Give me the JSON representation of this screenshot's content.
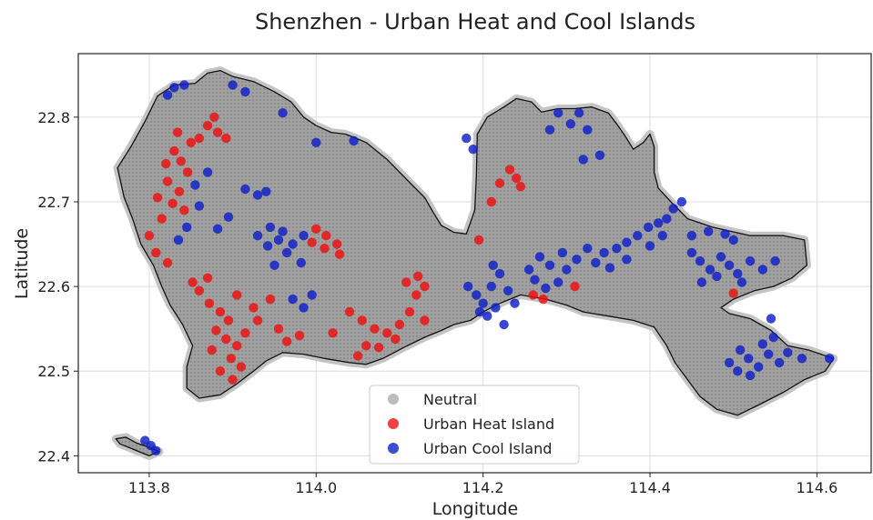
{
  "chart_data": {
    "type": "scatter",
    "title": "Shenzhen - Urban Heat and Cool Islands",
    "xlabel": "Longitude",
    "ylabel": "Latitude",
    "xlim": [
      113.715,
      114.665
    ],
    "ylim": [
      22.38,
      22.875
    ],
    "xticks": [
      113.8,
      114.0,
      114.2,
      114.4,
      114.6
    ],
    "xtick_labels": [
      "113.8",
      "114.0",
      "114.2",
      "114.4",
      "114.6"
    ],
    "yticks": [
      22.4,
      22.5,
      22.6,
      22.7,
      22.8
    ],
    "ytick_labels": [
      "22.4",
      "22.5",
      "22.6",
      "22.7",
      "22.8"
    ],
    "grid": true,
    "legend_position": "bottom-center",
    "boundary": [
      [
        113.762,
        22.74
      ],
      [
        113.778,
        22.765
      ],
      [
        113.795,
        22.795
      ],
      [
        113.81,
        22.825
      ],
      [
        113.83,
        22.838
      ],
      [
        113.855,
        22.84
      ],
      [
        113.87,
        22.852
      ],
      [
        113.885,
        22.855
      ],
      [
        113.9,
        22.848
      ],
      [
        113.925,
        22.842
      ],
      [
        113.95,
        22.83
      ],
      [
        113.97,
        22.818
      ],
      [
        113.985,
        22.8
      ],
      [
        114.0,
        22.79
      ],
      [
        114.018,
        22.782
      ],
      [
        114.035,
        22.78
      ],
      [
        114.048,
        22.775
      ],
      [
        114.06,
        22.77
      ],
      [
        114.085,
        22.75
      ],
      [
        114.1,
        22.735
      ],
      [
        114.115,
        22.72
      ],
      [
        114.13,
        22.705
      ],
      [
        114.14,
        22.688
      ],
      [
        114.15,
        22.672
      ],
      [
        114.165,
        22.664
      ],
      [
        114.18,
        22.662
      ],
      [
        114.19,
        22.69
      ],
      [
        114.192,
        22.73
      ],
      [
        114.193,
        22.78
      ],
      [
        114.205,
        22.8
      ],
      [
        114.225,
        22.812
      ],
      [
        114.24,
        22.822
      ],
      [
        114.258,
        22.818
      ],
      [
        114.27,
        22.806
      ],
      [
        114.29,
        22.81
      ],
      [
        114.31,
        22.81
      ],
      [
        114.33,
        22.812
      ],
      [
        114.35,
        22.805
      ],
      [
        114.36,
        22.792
      ],
      [
        114.37,
        22.778
      ],
      [
        114.38,
        22.762
      ],
      [
        114.392,
        22.77
      ],
      [
        114.4,
        22.78
      ],
      [
        114.405,
        22.765
      ],
      [
        114.405,
        22.735
      ],
      [
        114.41,
        22.716
      ],
      [
        114.425,
        22.7
      ],
      [
        114.445,
        22.68
      ],
      [
        114.475,
        22.67
      ],
      [
        114.52,
        22.66
      ],
      [
        114.56,
        22.66
      ],
      [
        114.585,
        22.655
      ],
      [
        114.588,
        22.625
      ],
      [
        114.57,
        22.61
      ],
      [
        114.548,
        22.6
      ],
      [
        114.525,
        22.595
      ],
      [
        114.5,
        22.585
      ],
      [
        114.485,
        22.575
      ],
      [
        114.495,
        22.568
      ],
      [
        114.52,
        22.562
      ],
      [
        114.545,
        22.548
      ],
      [
        114.565,
        22.53
      ],
      [
        114.59,
        22.525
      ],
      [
        114.62,
        22.515
      ],
      [
        114.61,
        22.5
      ],
      [
        114.585,
        22.49
      ],
      [
        114.56,
        22.475
      ],
      [
        114.53,
        22.46
      ],
      [
        114.505,
        22.448
      ],
      [
        114.48,
        22.455
      ],
      [
        114.46,
        22.47
      ],
      [
        114.445,
        22.49
      ],
      [
        114.43,
        22.51
      ],
      [
        114.42,
        22.53
      ],
      [
        114.405,
        22.552
      ],
      [
        114.38,
        22.56
      ],
      [
        114.35,
        22.565
      ],
      [
        114.32,
        22.57
      ],
      [
        114.3,
        22.578
      ],
      [
        114.275,
        22.585
      ],
      [
        114.245,
        22.59
      ],
      [
        114.22,
        22.58
      ],
      [
        114.2,
        22.57
      ],
      [
        114.185,
        22.56
      ],
      [
        114.165,
        22.555
      ],
      [
        114.15,
        22.548
      ],
      [
        114.13,
        22.54
      ],
      [
        114.105,
        22.528
      ],
      [
        114.08,
        22.515
      ],
      [
        114.06,
        22.508
      ],
      [
        114.04,
        22.51
      ],
      [
        114.01,
        22.515
      ],
      [
        113.985,
        22.52
      ],
      [
        113.96,
        22.522
      ],
      [
        113.94,
        22.512
      ],
      [
        113.925,
        22.5
      ],
      [
        113.905,
        22.485
      ],
      [
        113.885,
        22.472
      ],
      [
        113.86,
        22.468
      ],
      [
        113.845,
        22.48
      ],
      [
        113.845,
        22.505
      ],
      [
        113.852,
        22.53
      ],
      [
        113.84,
        22.555
      ],
      [
        113.825,
        22.578
      ],
      [
        113.815,
        22.6
      ],
      [
        113.805,
        22.625
      ],
      [
        113.79,
        22.65
      ],
      [
        113.78,
        22.68
      ],
      [
        113.77,
        22.705
      ]
    ],
    "island": [
      [
        113.76,
        22.42
      ],
      [
        113.772,
        22.422
      ],
      [
        113.785,
        22.415
      ],
      [
        113.8,
        22.41
      ],
      [
        113.812,
        22.405
      ],
      [
        113.8,
        22.4
      ],
      [
        113.78,
        22.408
      ],
      [
        113.765,
        22.414
      ]
    ],
    "series": [
      {
        "name": "Neutral",
        "color": "#a8a8a8",
        "points": []
      },
      {
        "name": "Urban Heat Island",
        "color": "#ee1010",
        "points": [
          [
            113.83,
            22.76
          ],
          [
            113.838,
            22.748
          ],
          [
            113.846,
            22.735
          ],
          [
            113.822,
            22.724
          ],
          [
            113.836,
            22.712
          ],
          [
            113.828,
            22.698
          ],
          [
            113.842,
            22.69
          ],
          [
            113.815,
            22.68
          ],
          [
            113.85,
            22.77
          ],
          [
            113.82,
            22.745
          ],
          [
            113.834,
            22.782
          ],
          [
            113.81,
            22.705
          ],
          [
            113.8,
            22.66
          ],
          [
            113.808,
            22.64
          ],
          [
            113.822,
            22.628
          ],
          [
            113.87,
            22.79
          ],
          [
            113.882,
            22.782
          ],
          [
            113.86,
            22.775
          ],
          [
            113.892,
            22.775
          ],
          [
            113.878,
            22.8
          ],
          [
            113.86,
            22.595
          ],
          [
            113.872,
            22.58
          ],
          [
            113.885,
            22.57
          ],
          [
            113.895,
            22.56
          ],
          [
            113.88,
            22.548
          ],
          [
            113.892,
            22.538
          ],
          [
            113.905,
            22.53
          ],
          [
            113.898,
            22.515
          ],
          [
            113.91,
            22.505
          ],
          [
            113.885,
            22.5
          ],
          [
            113.9,
            22.49
          ],
          [
            113.875,
            22.525
          ],
          [
            113.915,
            22.545
          ],
          [
            113.93,
            22.56
          ],
          [
            113.925,
            22.575
          ],
          [
            113.945,
            22.585
          ],
          [
            113.905,
            22.59
          ],
          [
            113.955,
            22.55
          ],
          [
            113.965,
            22.535
          ],
          [
            113.98,
            22.542
          ],
          [
            113.87,
            22.61
          ],
          [
            113.852,
            22.605
          ],
          [
            114.0,
            22.668
          ],
          [
            114.012,
            22.66
          ],
          [
            114.025,
            22.65
          ],
          [
            114.01,
            22.645
          ],
          [
            114.028,
            22.638
          ],
          [
            113.995,
            22.652
          ],
          [
            114.04,
            22.57
          ],
          [
            114.055,
            22.56
          ],
          [
            114.07,
            22.55
          ],
          [
            114.085,
            22.545
          ],
          [
            114.1,
            22.555
          ],
          [
            114.112,
            22.57
          ],
          [
            114.12,
            22.59
          ],
          [
            114.108,
            22.605
          ],
          [
            114.122,
            22.612
          ],
          [
            114.095,
            22.538
          ],
          [
            114.075,
            22.528
          ],
          [
            114.06,
            22.53
          ],
          [
            114.05,
            22.518
          ],
          [
            114.13,
            22.56
          ],
          [
            114.02,
            22.545
          ],
          [
            114.13,
            22.6
          ],
          [
            114.195,
            22.655
          ],
          [
            114.22,
            22.722
          ],
          [
            114.232,
            22.738
          ],
          [
            114.24,
            22.728
          ],
          [
            114.21,
            22.7
          ],
          [
            114.245,
            22.718
          ],
          [
            114.26,
            22.59
          ],
          [
            114.272,
            22.585
          ],
          [
            114.31,
            22.6
          ],
          [
            114.5,
            22.592
          ]
        ]
      },
      {
        "name": "Urban Cool Island",
        "color": "#0e1fc8",
        "points": [
          [
            113.83,
            22.835
          ],
          [
            113.842,
            22.838
          ],
          [
            113.822,
            22.826
          ],
          [
            113.9,
            22.838
          ],
          [
            113.915,
            22.83
          ],
          [
            113.96,
            22.805
          ],
          [
            114.0,
            22.77
          ],
          [
            114.045,
            22.772
          ],
          [
            113.87,
            22.735
          ],
          [
            113.855,
            22.72
          ],
          [
            113.86,
            22.695
          ],
          [
            113.845,
            22.67
          ],
          [
            113.835,
            22.655
          ],
          [
            113.882,
            22.668
          ],
          [
            113.895,
            22.682
          ],
          [
            113.915,
            22.715
          ],
          [
            113.93,
            22.708
          ],
          [
            113.94,
            22.712
          ],
          [
            113.93,
            22.66
          ],
          [
            113.942,
            22.648
          ],
          [
            113.955,
            22.655
          ],
          [
            113.965,
            22.64
          ],
          [
            113.972,
            22.65
          ],
          [
            113.96,
            22.665
          ],
          [
            113.982,
            22.628
          ],
          [
            113.95,
            22.625
          ],
          [
            113.985,
            22.66
          ],
          [
            113.945,
            22.67
          ],
          [
            113.972,
            22.585
          ],
          [
            113.985,
            22.575
          ],
          [
            113.995,
            22.59
          ],
          [
            114.18,
            22.775
          ],
          [
            114.188,
            22.762
          ],
          [
            114.182,
            22.6
          ],
          [
            114.192,
            22.59
          ],
          [
            114.2,
            22.58
          ],
          [
            114.21,
            22.6
          ],
          [
            114.22,
            22.615
          ],
          [
            114.23,
            22.595
          ],
          [
            114.215,
            22.575
          ],
          [
            114.238,
            22.58
          ],
          [
            114.205,
            22.565
          ],
          [
            114.225,
            22.555
          ],
          [
            114.196,
            22.57
          ],
          [
            114.212,
            22.625
          ],
          [
            114.255,
            22.62
          ],
          [
            114.268,
            22.635
          ],
          [
            114.28,
            22.625
          ],
          [
            114.295,
            22.64
          ],
          [
            114.3,
            22.62
          ],
          [
            114.312,
            22.632
          ],
          [
            114.325,
            22.645
          ],
          [
            114.335,
            22.628
          ],
          [
            114.345,
            22.64
          ],
          [
            114.36,
            22.645
          ],
          [
            114.372,
            22.652
          ],
          [
            114.385,
            22.66
          ],
          [
            114.398,
            22.67
          ],
          [
            114.41,
            22.675
          ],
          [
            114.42,
            22.68
          ],
          [
            114.372,
            22.632
          ],
          [
            114.352,
            22.622
          ],
          [
            114.29,
            22.605
          ],
          [
            114.275,
            22.598
          ],
          [
            114.262,
            22.608
          ],
          [
            114.4,
            22.648
          ],
          [
            114.415,
            22.66
          ],
          [
            114.29,
            22.805
          ],
          [
            114.305,
            22.792
          ],
          [
            114.315,
            22.805
          ],
          [
            114.325,
            22.785
          ],
          [
            114.28,
            22.785
          ],
          [
            114.32,
            22.75
          ],
          [
            114.34,
            22.755
          ],
          [
            114.428,
            22.692
          ],
          [
            114.438,
            22.7
          ],
          [
            114.45,
            22.64
          ],
          [
            114.46,
            22.63
          ],
          [
            114.472,
            22.62
          ],
          [
            114.485,
            22.635
          ],
          [
            114.495,
            22.625
          ],
          [
            114.505,
            22.615
          ],
          [
            114.52,
            22.63
          ],
          [
            114.535,
            22.62
          ],
          [
            114.55,
            22.63
          ],
          [
            114.462,
            22.605
          ],
          [
            114.48,
            22.612
          ],
          [
            114.51,
            22.605
          ],
          [
            114.45,
            22.66
          ],
          [
            114.47,
            22.665
          ],
          [
            114.49,
            22.662
          ],
          [
            114.5,
            22.655
          ],
          [
            114.495,
            22.51
          ],
          [
            114.505,
            22.5
          ],
          [
            114.518,
            22.515
          ],
          [
            114.53,
            22.505
          ],
          [
            114.542,
            22.52
          ],
          [
            114.555,
            22.51
          ],
          [
            114.565,
            22.522
          ],
          [
            114.52,
            22.495
          ],
          [
            114.535,
            22.532
          ],
          [
            114.548,
            22.54
          ],
          [
            114.508,
            22.525
          ],
          [
            114.582,
            22.515
          ],
          [
            114.545,
            22.562
          ],
          [
            114.615,
            22.515
          ],
          [
            113.795,
            22.418
          ],
          [
            113.802,
            22.412
          ],
          [
            113.808,
            22.406
          ]
        ]
      }
    ]
  }
}
